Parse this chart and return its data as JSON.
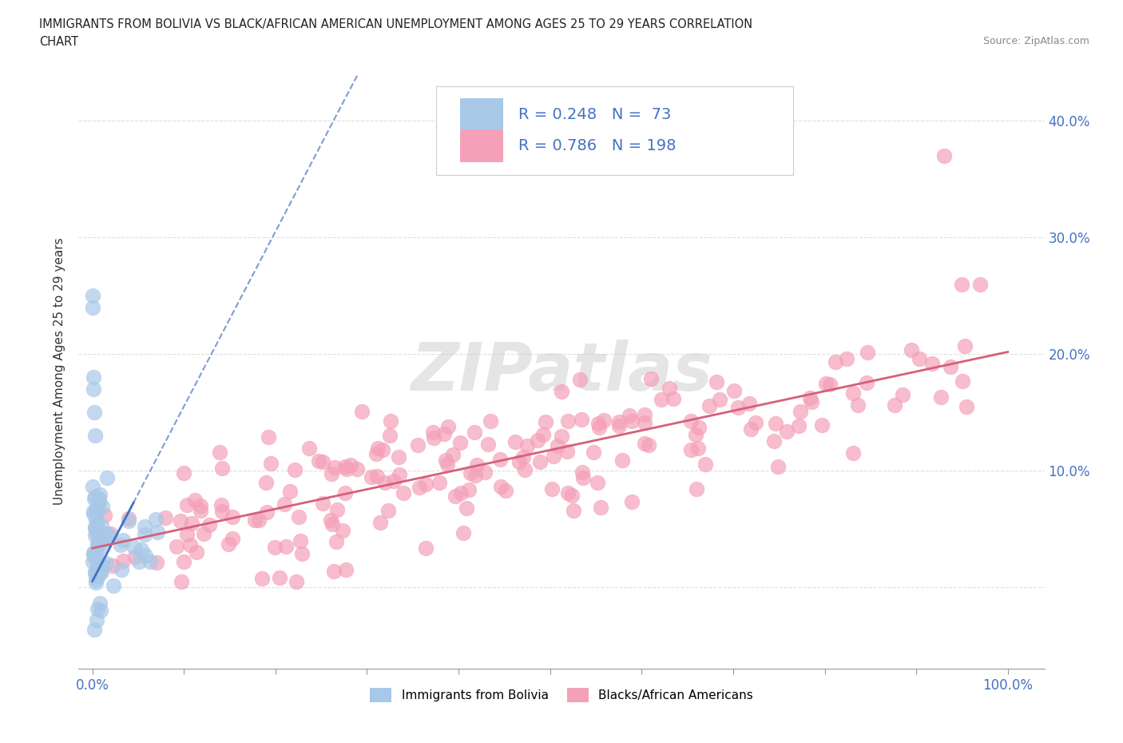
{
  "title_line1": "IMMIGRANTS FROM BOLIVIA VS BLACK/AFRICAN AMERICAN UNEMPLOYMENT AMONG AGES 25 TO 29 YEARS CORRELATION",
  "title_line2": "CHART",
  "source": "Source: ZipAtlas.com",
  "ylabel": "Unemployment Among Ages 25 to 29 years",
  "xtick_positions": [
    0.0,
    0.1,
    0.2,
    0.3,
    0.4,
    0.5,
    0.6,
    0.7,
    0.8,
    0.9,
    1.0
  ],
  "xtick_labels": [
    "0.0%",
    "",
    "",
    "",
    "",
    "",
    "",
    "",
    "",
    "",
    "100.0%"
  ],
  "ytick_positions": [
    0.0,
    0.1,
    0.2,
    0.3,
    0.4
  ],
  "ytick_labels": [
    "",
    "10.0%",
    "20.0%",
    "30.0%",
    "40.0%"
  ],
  "bolivia_color": "#a8c8e8",
  "black_color": "#f4a0b8",
  "bolivia_R": 0.248,
  "bolivia_N": 73,
  "black_R": 0.786,
  "black_N": 198,
  "legend_label1": "Immigrants from Bolivia",
  "legend_label2": "Blacks/African Americans",
  "watermark_text": "ZIPatlas",
  "bolivia_trend_color": "#4472c4",
  "black_trend_color": "#d4607a",
  "grid_color": "#d0d0d0",
  "background_color": "#ffffff",
  "title_color": "#222222",
  "source_color": "#888888",
  "tick_label_color": "#4472c4",
  "ylabel_color": "#333333"
}
